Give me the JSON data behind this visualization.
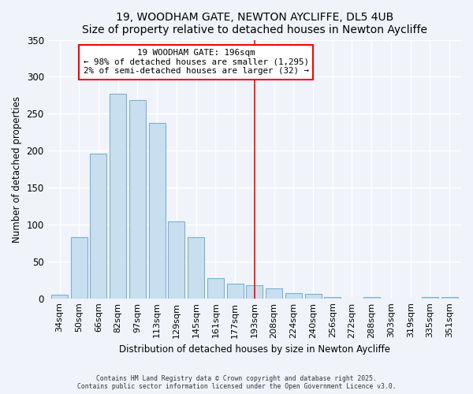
{
  "title": "19, WOODHAM GATE, NEWTON AYCLIFFE, DL5 4UB",
  "subtitle": "Size of property relative to detached houses in Newton Aycliffe",
  "xlabel": "Distribution of detached houses by size in Newton Aycliffe",
  "ylabel": "Number of detached properties",
  "bar_labels": [
    "34sqm",
    "50sqm",
    "66sqm",
    "82sqm",
    "97sqm",
    "113sqm",
    "129sqm",
    "145sqm",
    "161sqm",
    "177sqm",
    "193sqm",
    "208sqm",
    "224sqm",
    "240sqm",
    "256sqm",
    "272sqm",
    "288sqm",
    "303sqm",
    "319sqm",
    "335sqm",
    "351sqm"
  ],
  "bar_values": [
    5,
    83,
    196,
    277,
    268,
    238,
    104,
    83,
    27,
    20,
    18,
    14,
    7,
    6,
    2,
    0,
    2,
    0,
    0,
    2,
    2
  ],
  "bar_color": "#c8dff0",
  "bar_edge_color": "#7bafd4",
  "vline_x_index": 10,
  "vline_color": "red",
  "annotation_title": "19 WOODHAM GATE: 196sqm",
  "annotation_line1": "← 98% of detached houses are smaller (1,295)",
  "annotation_line2": "2% of semi-detached houses are larger (32) →",
  "annotation_box_color": "white",
  "annotation_box_edge": "red",
  "ylim": [
    0,
    350
  ],
  "yticks": [
    0,
    50,
    100,
    150,
    200,
    250,
    300,
    350
  ],
  "footer1": "Contains HM Land Registry data © Crown copyright and database right 2025.",
  "footer2": "Contains public sector information licensed under the Open Government Licence v3.0.",
  "bg_color": "#f0f4fa",
  "grid_color": "#ffffff",
  "title_fontsize": 10,
  "subtitle_fontsize": 9
}
